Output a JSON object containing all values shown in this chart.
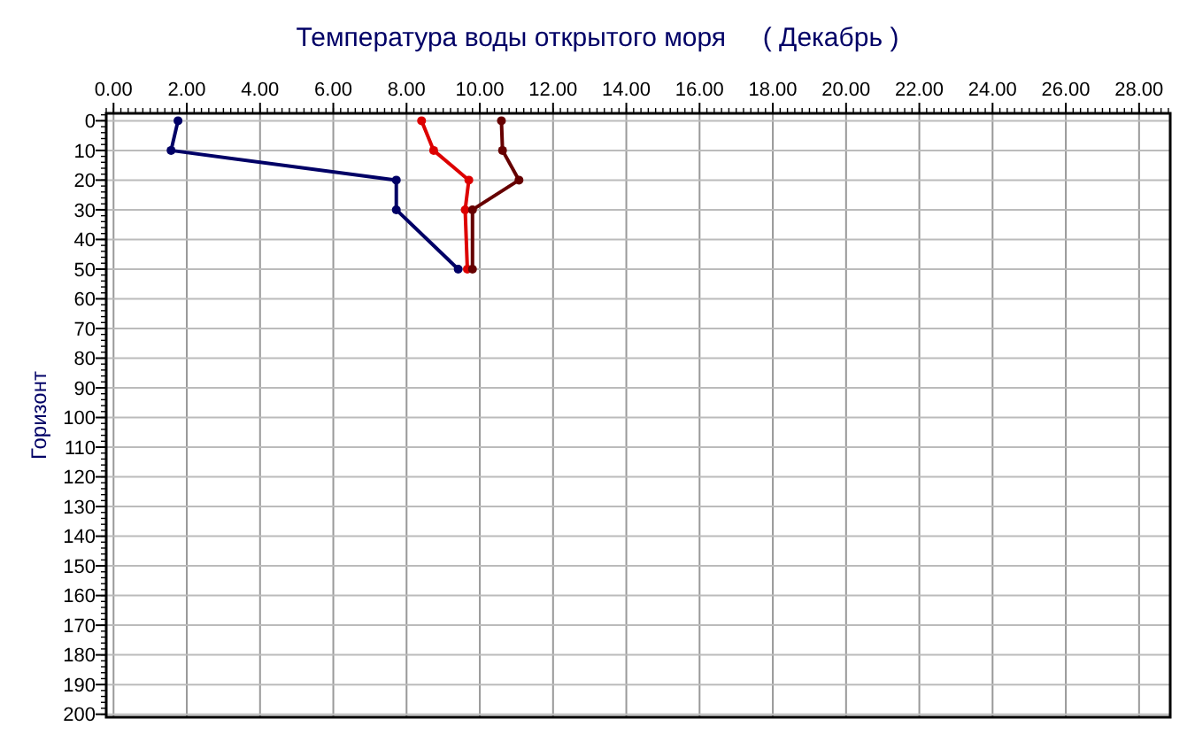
{
  "chart_data": {
    "type": "line",
    "title": "Температура воды открытого моря     ( Декабрь )",
    "ylabel": "Горизонт",
    "xlim": [
      -0.2,
      28.85
    ],
    "xticks": [
      {
        "value": 0,
        "label": "0.00"
      },
      {
        "value": 2,
        "label": "2.00"
      },
      {
        "value": 4,
        "label": "4.00"
      },
      {
        "value": 6,
        "label": "6.00"
      },
      {
        "value": 8,
        "label": "8.00"
      },
      {
        "value": 10,
        "label": "10.00"
      },
      {
        "value": 12,
        "label": "12.00"
      },
      {
        "value": 14,
        "label": "14.00"
      },
      {
        "value": 16,
        "label": "16.00"
      },
      {
        "value": 18,
        "label": "18.00"
      },
      {
        "value": 20,
        "label": "20.00"
      },
      {
        "value": 22,
        "label": "22.00"
      },
      {
        "value": 24,
        "label": "24.00"
      },
      {
        "value": 26,
        "label": "26.00"
      },
      {
        "value": 28,
        "label": "28.00"
      }
    ],
    "ylim": [
      201,
      -2.5
    ],
    "yticks": [
      0,
      10,
      20,
      30,
      40,
      50,
      60,
      70,
      80,
      90,
      100,
      110,
      120,
      130,
      140,
      150,
      160,
      170,
      180,
      190,
      200
    ],
    "grid": true,
    "marker": "circle",
    "line_style": "solid",
    "series": [
      {
        "color": "#000066",
        "x": [
          1.76,
          1.57,
          7.72,
          7.72,
          9.41
        ],
        "values": [
          0,
          10,
          20,
          30,
          50
        ]
      },
      {
        "color": "#dd0000",
        "x": [
          8.41,
          8.74,
          9.7,
          9.6,
          9.66
        ],
        "values": [
          0,
          10,
          20,
          30,
          50
        ]
      },
      {
        "color": "#660000",
        "x": [
          10.59,
          10.62,
          11.07,
          9.8,
          9.8
        ],
        "values": [
          0,
          10,
          20,
          30,
          50
        ]
      }
    ]
  }
}
